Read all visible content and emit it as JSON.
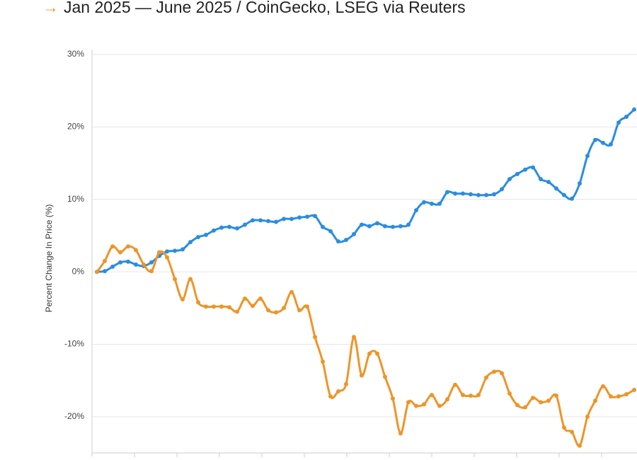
{
  "chart_data": {
    "type": "line",
    "title": "Jan 2025 — June 2025 / CoinGecko, LSEG via Reuters",
    "y_label": "Percent Change In Price (%)",
    "ylim": [
      -25,
      30
    ],
    "yticks": [
      {
        "value": 30,
        "label": "30%"
      },
      {
        "value": 20,
        "label": "20%"
      },
      {
        "value": 10,
        "label": "10%"
      },
      {
        "value": 0,
        "label": "0%"
      },
      {
        "value": -10,
        "label": "-10%"
      },
      {
        "value": -20,
        "label": "-20%"
      }
    ],
    "grid": true,
    "series": [
      {
        "color": "#2b8de0",
        "values": [
          0,
          0.1,
          0.7,
          1.3,
          1.4,
          1.0,
          0.8,
          1.3,
          2.2,
          2.8,
          2.9,
          3.1,
          4.1,
          4.8,
          5.1,
          5.7,
          6.1,
          6.2,
          6.0,
          6.5,
          7.1,
          7.1,
          7.0,
          6.9,
          7.3,
          7.3,
          7.5,
          7.6,
          7.7,
          6.2,
          5.6,
          4.2,
          4.4,
          5.2,
          6.5,
          6.3,
          6.7,
          6.3,
          6.2,
          6.3,
          6.5,
          8.5,
          9.6,
          9.4,
          9.4,
          11.0,
          10.8,
          10.8,
          10.7,
          10.6,
          10.6,
          10.7,
          11.4,
          12.8,
          13.5,
          14.1,
          14.4,
          12.8,
          12.4,
          11.5,
          10.6,
          10.1,
          12.2,
          16.0,
          18.2,
          17.8,
          17.6,
          20.6,
          21.4,
          22.4
        ]
      },
      {
        "color": "#ef9428",
        "values": [
          0,
          1.5,
          3.5,
          2.7,
          3.5,
          3.0,
          1.0,
          0.1,
          2.7,
          2.0,
          -1.0,
          -3.8,
          -1.0,
          -4.2,
          -4.8,
          -4.8,
          -4.8,
          -4.9,
          -5.5,
          -3.7,
          -4.7,
          -3.7,
          -5.3,
          -5.6,
          -5.0,
          -2.8,
          -5.3,
          -4.8,
          -9.0,
          -12.4,
          -17.2,
          -16.5,
          -15.5,
          -9.0,
          -14.3,
          -11.3,
          -11.3,
          -14.5,
          -17.5,
          -22.3,
          -18.0,
          -18.5,
          -18.3,
          -17.0,
          -18.5,
          -17.6,
          -15.6,
          -17.0,
          -17.1,
          -17.0,
          -14.6,
          -13.8,
          -14.0,
          -16.8,
          -18.4,
          -18.7,
          -17.4,
          -18.0,
          -17.8,
          -17.1,
          -21.5,
          -22.1,
          -24.0,
          -20.0,
          -17.8,
          -15.8,
          -17.2,
          -17.2,
          -16.9,
          -16.3
        ]
      }
    ]
  }
}
